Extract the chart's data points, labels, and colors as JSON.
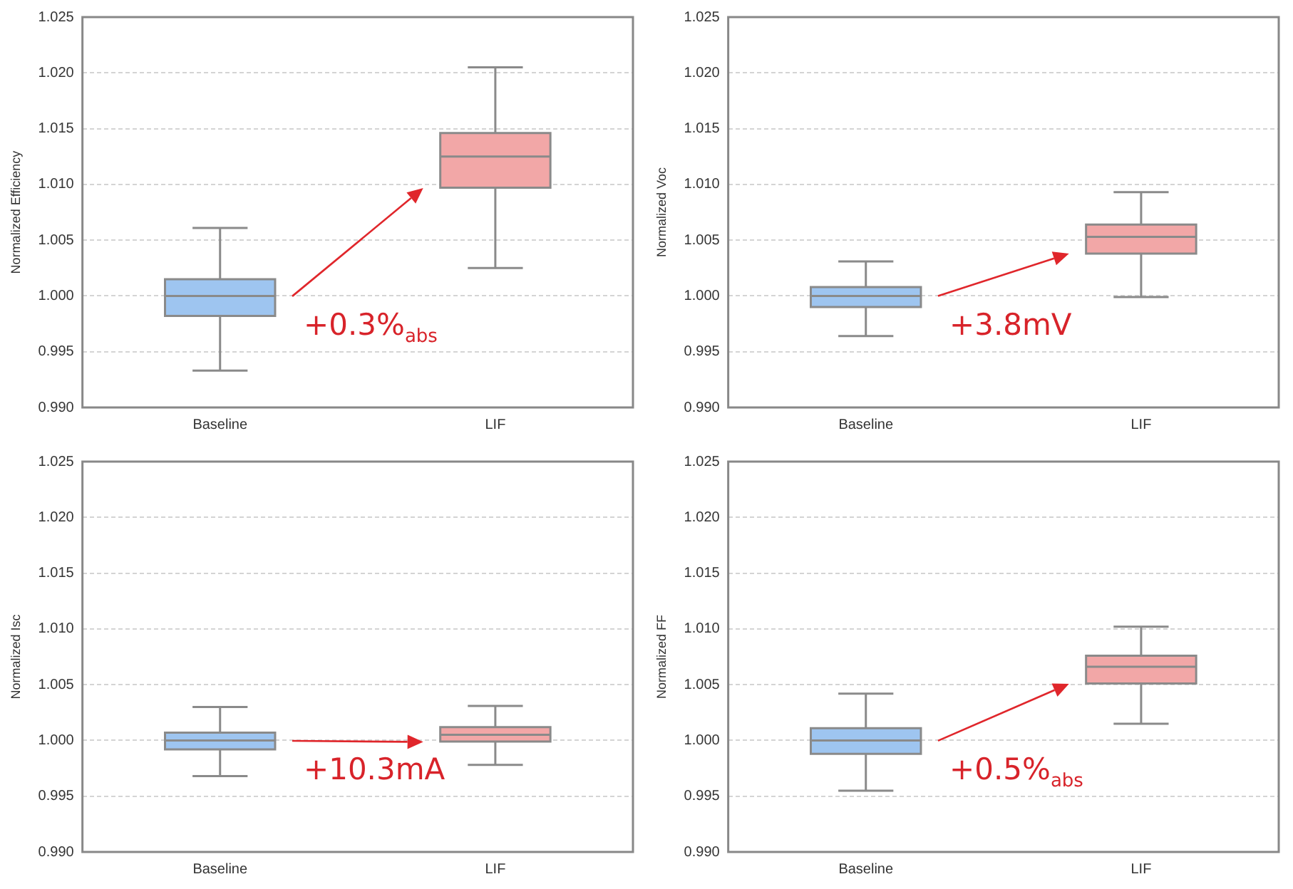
{
  "chart_data": [
    {
      "type": "box",
      "categories": [
        "Baseline",
        "LIF"
      ],
      "ylabel": "Normalized Efficiency",
      "colors": [
        "#9ec5f0",
        "#f2a7a7"
      ],
      "boxes": [
        {
          "low": 0.9933,
          "q1": 0.9982,
          "median": 1.0,
          "q3": 1.0015,
          "high": 1.0061
        },
        {
          "low": 1.0025,
          "q1": 1.0097,
          "median": 1.0125,
          "q3": 1.0146,
          "high": 1.0205
        }
      ],
      "ylim": [
        0.99,
        1.025
      ],
      "yticks": [
        {
          "value": 0.99,
          "label": "0.990"
        },
        {
          "value": 0.995,
          "label": "0.995"
        },
        {
          "value": 1.0,
          "label": "1.000"
        },
        {
          "value": 1.005,
          "label": "1.005"
        },
        {
          "value": 1.01,
          "label": "1.010"
        },
        {
          "value": 1.015,
          "label": "1.015"
        },
        {
          "value": 1.02,
          "label": "1.020"
        },
        {
          "value": 1.025,
          "label": "1.025"
        }
      ],
      "grid": "y",
      "annotations": [
        "+0.3%$_{abs}$"
      ]
    },
    {
      "type": "box",
      "categories": [
        "Baseline",
        "LIF"
      ],
      "ylabel": "Normalized Voc",
      "colors": [
        "#9ec5f0",
        "#f2a7a7"
      ],
      "boxes": [
        {
          "low": 0.9964,
          "q1": 0.999,
          "median": 1.0,
          "q3": 1.0008,
          "high": 1.0031
        },
        {
          "low": 0.9999,
          "q1": 1.0038,
          "median": 1.0053,
          "q3": 1.0064,
          "high": 1.0093
        }
      ],
      "ylim": [
        0.99,
        1.025
      ],
      "yticks": [
        {
          "value": 0.99,
          "label": "0.990"
        },
        {
          "value": 0.995,
          "label": "0.995"
        },
        {
          "value": 1.0,
          "label": "1.000"
        },
        {
          "value": 1.005,
          "label": "1.005"
        },
        {
          "value": 1.01,
          "label": "1.010"
        },
        {
          "value": 1.015,
          "label": "1.015"
        },
        {
          "value": 1.02,
          "label": "1.020"
        },
        {
          "value": 1.025,
          "label": "1.025"
        }
      ],
      "grid": "y",
      "annotations": [
        "+3.8mV"
      ]
    },
    {
      "type": "box",
      "categories": [
        "Baseline",
        "LIF"
      ],
      "ylabel": "Normalized Isc",
      "colors": [
        "#9ec5f0",
        "#f2a7a7"
      ],
      "boxes": [
        {
          "low": 0.9968,
          "q1": 0.9992,
          "median": 1.0,
          "q3": 1.0007,
          "high": 1.003
        },
        {
          "low": 0.9978,
          "q1": 0.9999,
          "median": 1.0005,
          "q3": 1.0012,
          "high": 1.0031
        }
      ],
      "ylim": [
        0.99,
        1.025
      ],
      "yticks": [
        {
          "value": 0.99,
          "label": "0.990"
        },
        {
          "value": 0.995,
          "label": "0.995"
        },
        {
          "value": 1.0,
          "label": "1.000"
        },
        {
          "value": 1.005,
          "label": "1.005"
        },
        {
          "value": 1.01,
          "label": "1.010"
        },
        {
          "value": 1.015,
          "label": "1.015"
        },
        {
          "value": 1.02,
          "label": "1.020"
        },
        {
          "value": 1.025,
          "label": "1.025"
        }
      ],
      "grid": "y",
      "annotations": [
        "+10.3mA"
      ]
    },
    {
      "type": "box",
      "categories": [
        "Baseline",
        "LIF"
      ],
      "ylabel": "Normalized FF",
      "colors": [
        "#9ec5f0",
        "#f2a7a7"
      ],
      "boxes": [
        {
          "low": 0.9955,
          "q1": 0.9988,
          "median": 1.0,
          "q3": 1.0011,
          "high": 1.0042
        },
        {
          "low": 1.0015,
          "q1": 1.0051,
          "median": 1.0066,
          "q3": 1.0076,
          "high": 1.0102
        }
      ],
      "ylim": [
        0.99,
        1.025
      ],
      "yticks": [
        {
          "value": 0.99,
          "label": "0.990"
        },
        {
          "value": 0.995,
          "label": "0.995"
        },
        {
          "value": 1.0,
          "label": "1.000"
        },
        {
          "value": 1.005,
          "label": "1.005"
        },
        {
          "value": 1.01,
          "label": "1.010"
        },
        {
          "value": 1.015,
          "label": "1.015"
        },
        {
          "value": 1.02,
          "label": "1.020"
        },
        {
          "value": 1.025,
          "label": "1.025"
        }
      ],
      "grid": "y",
      "annotations": [
        "+0.5%$_{abs}$"
      ]
    }
  ]
}
